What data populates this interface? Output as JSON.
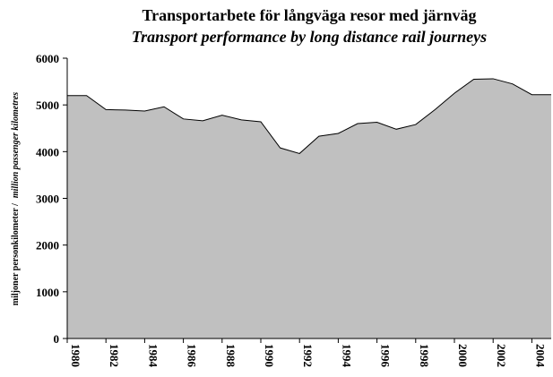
{
  "chart_data": {
    "type": "area",
    "title": "Transportarbete för långväga resor med järnväg",
    "subtitle": "Transport performance by long distance rail journeys",
    "ylabel": "miljoner personkilometer  /",
    "ylabel_en": "million passenger kilometres",
    "x": [
      1980,
      1981,
      1982,
      1983,
      1984,
      1985,
      1986,
      1987,
      1988,
      1989,
      1990,
      1991,
      1992,
      1993,
      1994,
      1995,
      1996,
      1997,
      1998,
      1999,
      2000,
      2001,
      2002,
      2003,
      2004,
      2005
    ],
    "values": [
      5200,
      5200,
      4900,
      4890,
      4870,
      4960,
      4700,
      4660,
      4780,
      4680,
      4640,
      4080,
      3960,
      4330,
      4390,
      4600,
      4630,
      4480,
      4580,
      4900,
      5250,
      5550,
      5560,
      5450,
      5220,
      5220
    ],
    "color": "#c0c0c0",
    "xlim": [
      1980,
      2005
    ],
    "xticks": [
      1980,
      1982,
      1984,
      1986,
      1988,
      1990,
      1992,
      1994,
      1996,
      1998,
      2000,
      2002,
      2004
    ],
    "ylim": [
      0,
      6000
    ],
    "yticks": [
      0,
      1000,
      2000,
      3000,
      4000,
      5000,
      6000
    ]
  }
}
